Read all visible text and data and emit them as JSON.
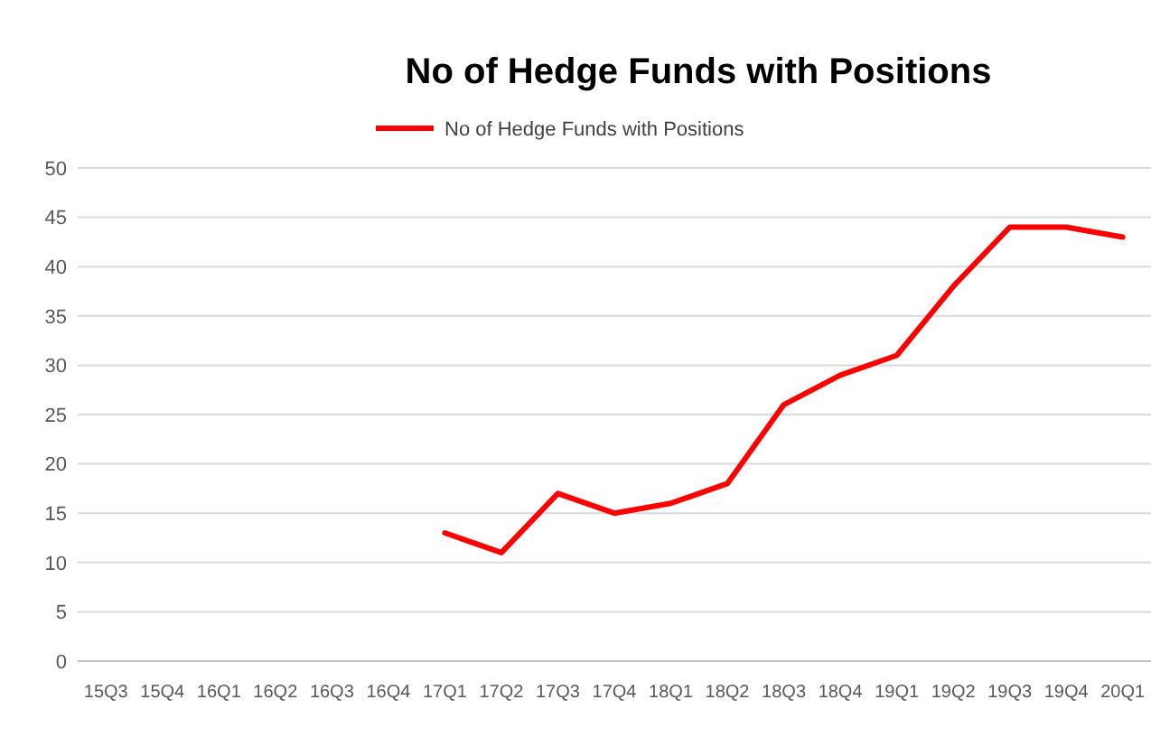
{
  "chart_data": {
    "type": "line",
    "title": "No of Hedge Funds with Positions",
    "categories": [
      "15Q3",
      "15Q4",
      "16Q1",
      "16Q2",
      "16Q3",
      "16Q4",
      "17Q1",
      "17Q2",
      "17Q3",
      "17Q4",
      "18Q1",
      "18Q2",
      "18Q3",
      "18Q4",
      "19Q1",
      "19Q2",
      "19Q3",
      "19Q4",
      "20Q1"
    ],
    "series": [
      {
        "name": "No of Hedge Funds with Positions",
        "color": "#ff0000",
        "values": [
          null,
          null,
          null,
          null,
          null,
          null,
          13,
          11,
          17,
          15,
          16,
          18,
          26,
          29,
          31,
          38,
          44,
          44,
          43
        ]
      }
    ],
    "ylim": [
      0,
      50
    ],
    "yticks": [
      0,
      5,
      10,
      15,
      20,
      25,
      30,
      35,
      40,
      45,
      50
    ],
    "grid": "y",
    "legend": "top",
    "marker": "none",
    "line_style": "solid"
  }
}
